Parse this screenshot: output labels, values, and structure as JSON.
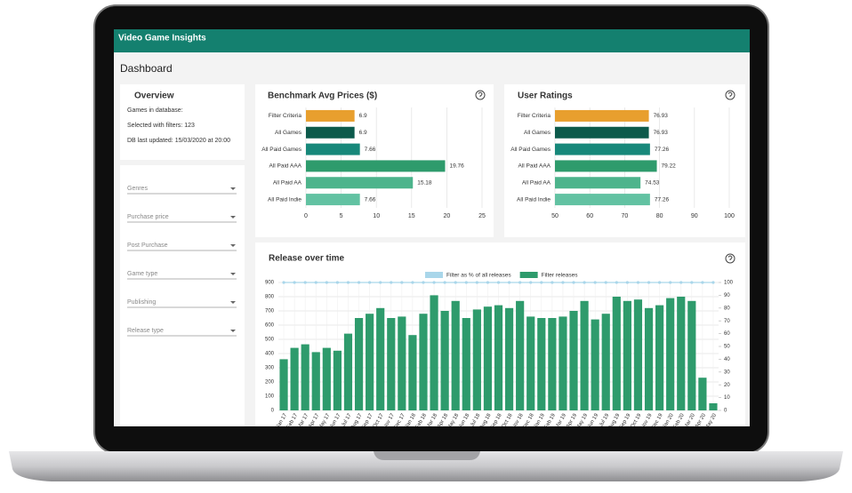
{
  "header": {
    "title": "Video Game Insights"
  },
  "page": {
    "title": "Dashboard"
  },
  "overview": {
    "title": "Overview",
    "lines": [
      "Games in database:",
      "Selected with filters: 123",
      "DB last updated: 15/03/2020 at 20:00"
    ]
  },
  "filters": [
    "Genres",
    "Purchase price",
    "Post Purchase",
    "Game type",
    "Publishing",
    "Release type"
  ],
  "chart_data": [
    {
      "type": "bar",
      "horizontal": true,
      "title": "Benchmark Avg Prices ($)",
      "categories": [
        "Filter Criteria",
        "All Games",
        "All Paid Games",
        "All Paid AAA",
        "All Paid AA",
        "All Paid Indie"
      ],
      "values": [
        6.9,
        6.9,
        7.66,
        19.76,
        15.18,
        7.66
      ],
      "colors": [
        "#e89f2e",
        "#0c5a4b",
        "#17887a",
        "#2e9b6c",
        "#4db48c",
        "#62c2a2"
      ],
      "xlim": [
        0,
        25
      ],
      "xticks": [
        0,
        5,
        10,
        15,
        20,
        25
      ],
      "grid": true
    },
    {
      "type": "bar",
      "horizontal": true,
      "title": "User Ratings",
      "categories": [
        "Filter Criteria",
        "All Games",
        "All Paid Games",
        "All Paid AAA",
        "All Paid AA",
        "All Paid Indie"
      ],
      "values": [
        76.93,
        76.93,
        77.26,
        79.22,
        74.53,
        77.26
      ],
      "colors": [
        "#e89f2e",
        "#0c5a4b",
        "#17887a",
        "#2e9b6c",
        "#4db48c",
        "#62c2a2"
      ],
      "xlim": [
        50,
        100
      ],
      "xticks": [
        50,
        60,
        70,
        80,
        90,
        100
      ],
      "grid": true
    },
    {
      "type": "combo",
      "title": "Release over time",
      "categories": [
        "Jan 17",
        "Feb 17",
        "Mar 17",
        "Apr 17",
        "May 17",
        "Jun 17",
        "Jul 17",
        "Aug 17",
        "Sep 17",
        "Oct 17",
        "Nov 17",
        "Dec 17",
        "Jan 18",
        "Feb 18",
        "Mar 18",
        "Apr 18",
        "May 18",
        "Jun 18",
        "Jul 18",
        "Aug 18",
        "Sep 18",
        "Oct 18",
        "Nov 18",
        "Dec 18",
        "Jan 19",
        "Feb 19",
        "Mar 19",
        "Apr 19",
        "May 19",
        "Jun 19",
        "Jul 19",
        "Aug 19",
        "Sep 19",
        "Oct 19",
        "Nov 19",
        "Dec 19",
        "Jan 20",
        "Feb 20",
        "Mar 20",
        "Apr 20",
        "May 20"
      ],
      "series": [
        {
          "name": "Filter as % of all releases",
          "type": "line",
          "axis": "y2",
          "color": "#a9d6ea",
          "values": [
            100,
            100,
            100,
            100,
            100,
            100,
            100,
            100,
            100,
            100,
            100,
            100,
            100,
            100,
            100,
            100,
            100,
            100,
            100,
            100,
            100,
            100,
            100,
            100,
            100,
            100,
            100,
            100,
            100,
            100,
            100,
            100,
            100,
            100,
            100,
            100,
            100,
            100,
            100,
            100,
            100
          ]
        },
        {
          "name": "Filter releases",
          "type": "bar",
          "color": "#2e9b6c",
          "values": [
            360,
            440,
            465,
            410,
            440,
            420,
            540,
            650,
            680,
            720,
            650,
            660,
            530,
            680,
            810,
            700,
            770,
            650,
            710,
            730,
            740,
            720,
            770,
            660,
            650,
            650,
            660,
            700,
            770,
            640,
            680,
            800,
            770,
            780,
            720,
            740,
            790,
            800,
            770,
            230,
            50
          ]
        }
      ],
      "ylim": [
        0,
        900
      ],
      "yticks": [
        0,
        100,
        200,
        300,
        400,
        500,
        600,
        700,
        800,
        900
      ],
      "y2lim": [
        0,
        100
      ],
      "y2ticks": [
        0,
        10,
        20,
        30,
        40,
        50,
        60,
        70,
        80,
        90,
        100
      ],
      "grid": true,
      "legend": "top"
    }
  ]
}
